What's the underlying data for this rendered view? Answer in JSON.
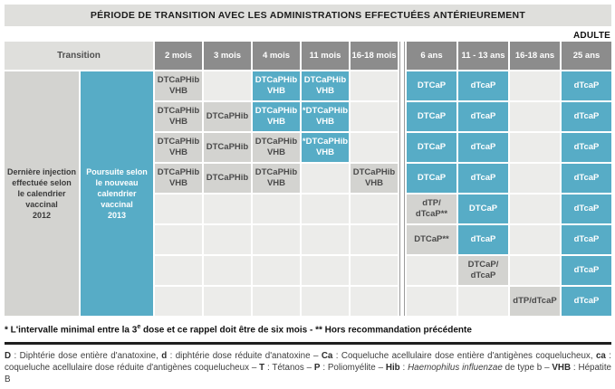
{
  "title": "PÉRIODE DE TRANSITION AVEC LES ADMINISTRATIONS EFFECTUÉES ANTÉRIEUREMENT",
  "adulte_label": "ADULTE",
  "colors": {
    "blue": "#57acc6",
    "cell_grey": "#d3d3d0",
    "empty_grey": "#ececea",
    "header_grey": "#8c8c8c",
    "title_bar": "#dfdfdc"
  },
  "header": {
    "transition": "Transition",
    "columns": [
      "2 mois",
      "3 mois",
      "4 mois",
      "11 mois",
      "16-18 mois",
      "6 ans",
      "11 - 13 ans",
      "16-18 ans",
      "25 ans"
    ]
  },
  "left_labels": {
    "last_injection": "Dernière injection\neffectuée selon\nle calendrier\nvaccinal\n2012",
    "continuation": "Poursuite selon\nle nouveau\ncalendrier\nvaccinal\n2013"
  },
  "table": {
    "rows": [
      {
        "cells": [
          {
            "text": "DTCaPHib\nVHB",
            "style": "grey"
          },
          {
            "text": "",
            "style": "none"
          },
          {
            "text": "DTCaPHib\nVHB",
            "style": "blue"
          },
          {
            "text": "DTCaPHib\nVHB",
            "style": "blue"
          },
          {
            "text": "",
            "style": "none"
          },
          {
            "text": "DTCaP",
            "style": "blue"
          },
          {
            "text": "dTcaP",
            "style": "blue"
          },
          {
            "text": "",
            "style": "none"
          },
          {
            "text": "dTcaP",
            "style": "blue"
          }
        ]
      },
      {
        "cells": [
          {
            "text": "DTCaPHib\nVHB",
            "style": "grey"
          },
          {
            "text": "DTCaPHib",
            "style": "grey"
          },
          {
            "text": "DTCaPHib\nVHB",
            "style": "blue"
          },
          {
            "text": "*DTCaPHib\nVHB",
            "style": "blue"
          },
          {
            "text": "",
            "style": "none"
          },
          {
            "text": "DTCaP",
            "style": "blue"
          },
          {
            "text": "dTcaP",
            "style": "blue"
          },
          {
            "text": "",
            "style": "none"
          },
          {
            "text": "dTcaP",
            "style": "blue"
          }
        ]
      },
      {
        "cells": [
          {
            "text": "DTCaPHib\nVHB",
            "style": "grey"
          },
          {
            "text": "DTCaPHib",
            "style": "grey"
          },
          {
            "text": "DTCaPHib\nVHB",
            "style": "grey"
          },
          {
            "text": "*DTCaPHib\nVHB",
            "style": "blue"
          },
          {
            "text": "",
            "style": "none"
          },
          {
            "text": "DTCaP",
            "style": "blue"
          },
          {
            "text": "dTcaP",
            "style": "blue"
          },
          {
            "text": "",
            "style": "none"
          },
          {
            "text": "dTcaP",
            "style": "blue"
          }
        ]
      },
      {
        "cells": [
          {
            "text": "DTCaPHib\nVHB",
            "style": "grey"
          },
          {
            "text": "DTCaPHib",
            "style": "grey"
          },
          {
            "text": "DTCaPHib\nVHB",
            "style": "grey"
          },
          {
            "text": "",
            "style": "none"
          },
          {
            "text": "DTCaPHib\nVHB",
            "style": "grey"
          },
          {
            "text": "DTCaP",
            "style": "blue"
          },
          {
            "text": "dTcaP",
            "style": "blue"
          },
          {
            "text": "",
            "style": "none"
          },
          {
            "text": "dTcaP",
            "style": "blue"
          }
        ]
      },
      {
        "cells": [
          {
            "text": "",
            "style": "none"
          },
          {
            "text": "",
            "style": "none"
          },
          {
            "text": "",
            "style": "none"
          },
          {
            "text": "",
            "style": "none"
          },
          {
            "text": "",
            "style": "none"
          },
          {
            "text": "dTP/\ndTcaP**",
            "style": "grey"
          },
          {
            "text": "DTCaP",
            "style": "blue"
          },
          {
            "text": "",
            "style": "none"
          },
          {
            "text": "dTcaP",
            "style": "blue"
          }
        ]
      },
      {
        "cells": [
          {
            "text": "",
            "style": "none"
          },
          {
            "text": "",
            "style": "none"
          },
          {
            "text": "",
            "style": "none"
          },
          {
            "text": "",
            "style": "none"
          },
          {
            "text": "",
            "style": "none"
          },
          {
            "text": "DTCaP**",
            "style": "grey"
          },
          {
            "text": "dTcaP",
            "style": "blue"
          },
          {
            "text": "",
            "style": "none"
          },
          {
            "text": "dTcaP",
            "style": "blue"
          }
        ]
      },
      {
        "cells": [
          {
            "text": "",
            "style": "none"
          },
          {
            "text": "",
            "style": "none"
          },
          {
            "text": "",
            "style": "none"
          },
          {
            "text": "",
            "style": "none"
          },
          {
            "text": "",
            "style": "none"
          },
          {
            "text": "",
            "style": "none"
          },
          {
            "text": "DTCaP/\ndTcaP",
            "style": "grey"
          },
          {
            "text": "",
            "style": "none"
          },
          {
            "text": "dTcaP",
            "style": "blue"
          }
        ]
      },
      {
        "cells": [
          {
            "text": "",
            "style": "none"
          },
          {
            "text": "",
            "style": "none"
          },
          {
            "text": "",
            "style": "none"
          },
          {
            "text": "",
            "style": "none"
          },
          {
            "text": "",
            "style": "none"
          },
          {
            "text": "",
            "style": "none"
          },
          {
            "text": "",
            "style": "none"
          },
          {
            "text": "dTP/dTcaP",
            "style": "grey"
          },
          {
            "text": "dTcaP",
            "style": "blue"
          }
        ]
      }
    ]
  },
  "footnote": {
    "pre": "* L'intervalle minimal entre la 3",
    "sup": "e",
    "post": " dose et ce rappel doit être de six mois - ** Hors recommandation précédente"
  },
  "legend": {
    "segments": [
      {
        "text": "D",
        "style": "bold"
      },
      {
        "text": " : Diphtérie dose entière d'anatoxine, ",
        "style": "normal"
      },
      {
        "text": "d",
        "style": "bold"
      },
      {
        "text": " : diphtérie dose réduite d'anatoxine – ",
        "style": "normal"
      },
      {
        "text": "Ca",
        "style": "bold"
      },
      {
        "text": " : Coqueluche acellulaire dose entière d'antigènes coquelucheux, ",
        "style": "normal"
      },
      {
        "text": "ca",
        "style": "bold"
      },
      {
        "text": " : coqueluche acellulaire dose réduite d'antigènes coquelucheux – ",
        "style": "normal"
      },
      {
        "text": "T",
        "style": "bold"
      },
      {
        "text": " : Tétanos – ",
        "style": "normal"
      },
      {
        "text": "P",
        "style": "bold"
      },
      {
        "text": " : Poliomyélite – ",
        "style": "normal"
      },
      {
        "text": "Hib",
        "style": "bold"
      },
      {
        "text": " : ",
        "style": "normal"
      },
      {
        "text": "Haemophilus influenzae",
        "style": "italic"
      },
      {
        "text": " de type b – ",
        "style": "normal"
      },
      {
        "text": "VHB",
        "style": "bold"
      },
      {
        "text": " : Hépatite B",
        "style": "normal"
      }
    ]
  }
}
